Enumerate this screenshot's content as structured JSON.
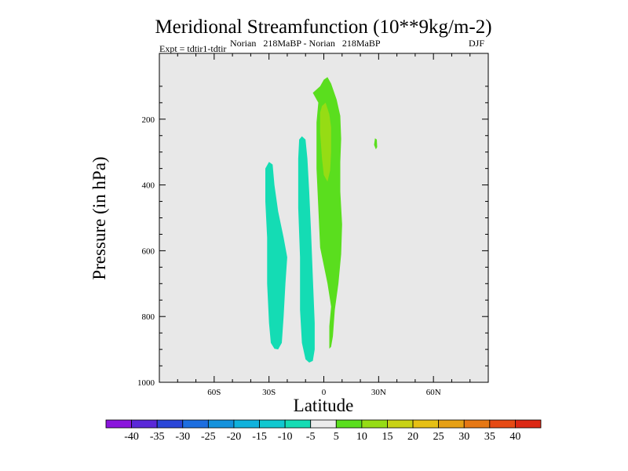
{
  "chart_data": {
    "type": "contour",
    "title": "Meridional Streamfunction (10**9kg/m-2)",
    "subtitle_left": "Expt = tdtir1-tdtir",
    "subtitle_center": "Norian   218MaBP - Norian   218MaBP",
    "subtitle_right": "DJF",
    "xlabel": "Latitude",
    "ylabel": "Pressure (in hPa)",
    "xlim": [
      -90,
      90
    ],
    "ylim": [
      1000,
      0
    ],
    "x_ticks": [
      {
        "value": -60,
        "label": "60S"
      },
      {
        "value": -30,
        "label": "30S"
      },
      {
        "value": 0,
        "label": "0"
      },
      {
        "value": 30,
        "label": "30N"
      },
      {
        "value": 60,
        "label": "60N"
      }
    ],
    "y_ticks": [
      {
        "value": 200,
        "label": "200"
      },
      {
        "value": 400,
        "label": "400"
      },
      {
        "value": 600,
        "label": "600"
      },
      {
        "value": 800,
        "label": "800"
      },
      {
        "value": 1000,
        "label": "1000"
      }
    ],
    "contour_levels": [
      -40,
      -35,
      -30,
      -25,
      -20,
      -15,
      -10,
      -5,
      5,
      10,
      15,
      20,
      25,
      30,
      35,
      40
    ],
    "colorbar_labels": [
      "-40",
      "-35",
      "-30",
      "-25",
      "-20",
      "-15",
      "-10",
      "-5",
      "5",
      "10",
      "15",
      "20",
      "25",
      "30",
      "35",
      "40"
    ],
    "colorbar_colors": [
      "#8a14dc",
      "#5a28d8",
      "#2a46d8",
      "#1d6ee0",
      "#1492dc",
      "#10b2dc",
      "#10c8d0",
      "#14dcb4",
      "#ebebeb",
      "#5ade1e",
      "#96dc14",
      "#c8d214",
      "#e6c014",
      "#e6a014",
      "#e67814",
      "#e64a14",
      "#dc2814"
    ],
    "background_color": "#e8e8e8",
    "regions": [
      {
        "name": "negative-cell-left",
        "level_range": [
          -10,
          -5
        ],
        "color": "#14dcb4",
        "points": [
          [
            -30,
            330
          ],
          [
            -28,
            338
          ],
          [
            -27,
            400
          ],
          [
            -25,
            480
          ],
          [
            -22,
            560
          ],
          [
            -20,
            620
          ],
          [
            -21,
            700
          ],
          [
            -22,
            800
          ],
          [
            -23,
            880
          ],
          [
            -25,
            900
          ],
          [
            -27,
            898
          ],
          [
            -29,
            880
          ],
          [
            -30,
            820
          ],
          [
            -31,
            700
          ],
          [
            -31,
            560
          ],
          [
            -32,
            450
          ],
          [
            -32,
            350
          ]
        ]
      },
      {
        "name": "negative-cell-center",
        "level_range": [
          -10,
          -5
        ],
        "color": "#14dcb4",
        "points": [
          [
            -12,
            252
          ],
          [
            -10,
            262
          ],
          [
            -9,
            320
          ],
          [
            -8,
            420
          ],
          [
            -7,
            540
          ],
          [
            -6,
            680
          ],
          [
            -5,
            820
          ],
          [
            -5,
            900
          ],
          [
            -6,
            935
          ],
          [
            -8,
            940
          ],
          [
            -10,
            930
          ],
          [
            -12,
            880
          ],
          [
            -13,
            780
          ],
          [
            -13,
            620
          ],
          [
            -14,
            470
          ],
          [
            -14,
            320
          ],
          [
            -13.5,
            262
          ]
        ]
      },
      {
        "name": "positive-cell-main",
        "level_range": [
          5,
          10
        ],
        "color": "#5ade1e",
        "points": [
          [
            2,
            72
          ],
          [
            4,
            92
          ],
          [
            7,
            140
          ],
          [
            9,
            190
          ],
          [
            9.5,
            260
          ],
          [
            9,
            330
          ],
          [
            9,
            420
          ],
          [
            10,
            520
          ],
          [
            9.5,
            610
          ],
          [
            8,
            700
          ],
          [
            6,
            780
          ],
          [
            5,
            860
          ],
          [
            4,
            892
          ],
          [
            3,
            898
          ],
          [
            3,
            830
          ],
          [
            4,
            770
          ],
          [
            2,
            700
          ],
          [
            -2,
            590
          ],
          [
            -3,
            470
          ],
          [
            -4,
            350
          ],
          [
            -4,
            210
          ],
          [
            -3,
            150
          ],
          [
            -6,
            120
          ],
          [
            -2,
            100
          ],
          [
            0,
            80
          ]
        ]
      },
      {
        "name": "positive-cell-core",
        "level_range": [
          10,
          15
        ],
        "color": "#96dc14",
        "points": [
          [
            1,
            150
          ],
          [
            3,
            185
          ],
          [
            4,
            225
          ],
          [
            4,
            300
          ],
          [
            3.5,
            355
          ],
          [
            2,
            390
          ],
          [
            0,
            370
          ],
          [
            -1,
            320
          ],
          [
            -2,
            240
          ],
          [
            -2,
            180
          ],
          [
            -1,
            160
          ]
        ]
      },
      {
        "name": "positive-cell-small",
        "level_range": [
          5,
          10
        ],
        "color": "#5ade1e",
        "points": [
          [
            28,
            258
          ],
          [
            29,
            262
          ],
          [
            29.2,
            285
          ],
          [
            28.5,
            292
          ],
          [
            27.5,
            278
          ]
        ]
      }
    ]
  }
}
